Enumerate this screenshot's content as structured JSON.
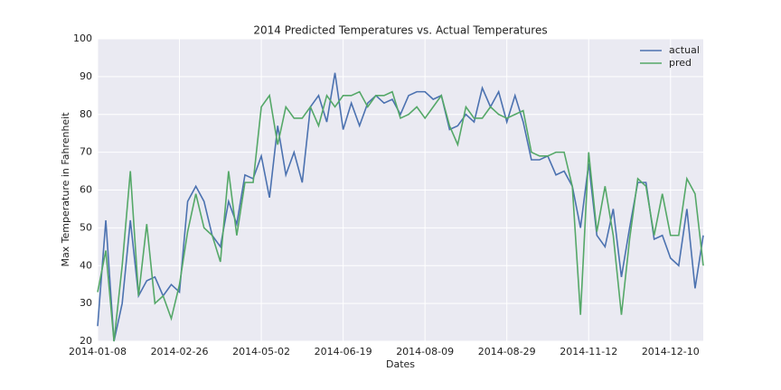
{
  "chart_data": {
    "type": "line",
    "title": "2014 Predicted Temperatures vs. Actual Temperatures",
    "xlabel": "Dates",
    "ylabel": "Max Temperature in Fahrenheit",
    "categories": [
      "2014-01-08",
      null,
      null,
      null,
      null,
      null,
      null,
      null,
      null,
      null,
      "2014-02-26",
      null,
      null,
      null,
      null,
      null,
      null,
      null,
      null,
      null,
      "2014-05-02",
      null,
      null,
      null,
      null,
      null,
      null,
      null,
      null,
      null,
      "2014-06-19",
      null,
      null,
      null,
      null,
      null,
      null,
      null,
      null,
      null,
      "2014-08-09",
      null,
      null,
      null,
      null,
      null,
      null,
      null,
      null,
      null,
      "2014-08-29",
      null,
      null,
      null,
      null,
      null,
      null,
      null,
      null,
      null,
      "2014-11-12",
      null,
      null,
      null,
      null,
      null,
      null,
      null,
      null,
      null,
      "2014-12-10",
      null,
      null,
      null,
      null
    ],
    "series": [
      {
        "name": "actual",
        "color": "#4c72b0",
        "values": [
          24,
          52,
          20,
          30,
          52,
          32,
          36,
          37,
          32,
          35,
          33,
          57,
          61,
          57,
          48,
          45,
          57,
          51,
          64,
          63,
          69,
          58,
          77,
          64,
          70,
          62,
          82,
          85,
          78,
          91,
          76,
          83,
          77,
          83,
          85,
          83,
          84,
          80,
          85,
          86,
          86,
          84,
          85,
          76,
          77,
          80,
          78,
          87,
          82,
          86,
          78,
          85,
          78,
          68,
          68,
          69,
          64,
          65,
          61,
          50,
          67,
          48,
          45,
          55,
          37,
          50,
          62,
          62,
          47,
          48,
          42,
          40,
          55,
          34,
          48
        ]
      },
      {
        "name": "pred",
        "color": "#55a868",
        "values": [
          33,
          44,
          20,
          40,
          65,
          32,
          51,
          30,
          32,
          26,
          35,
          49,
          59,
          50,
          48,
          41,
          65,
          48,
          62,
          62,
          82,
          85,
          72,
          82,
          79,
          79,
          82,
          77,
          85,
          82,
          85,
          85,
          86,
          82,
          85,
          85,
          86,
          79,
          80,
          82,
          79,
          82,
          85,
          77,
          72,
          82,
          79,
          79,
          82,
          80,
          79,
          80,
          81,
          70,
          69,
          69,
          70,
          70,
          61,
          27,
          70,
          49,
          61,
          48,
          27,
          47,
          63,
          61,
          48,
          59,
          48,
          48,
          63,
          59,
          40
        ]
      }
    ],
    "ylim": [
      20,
      100
    ],
    "yticks": [
      20,
      30,
      40,
      50,
      60,
      70,
      80,
      90,
      100
    ],
    "grid": true,
    "legend": "upper right"
  }
}
